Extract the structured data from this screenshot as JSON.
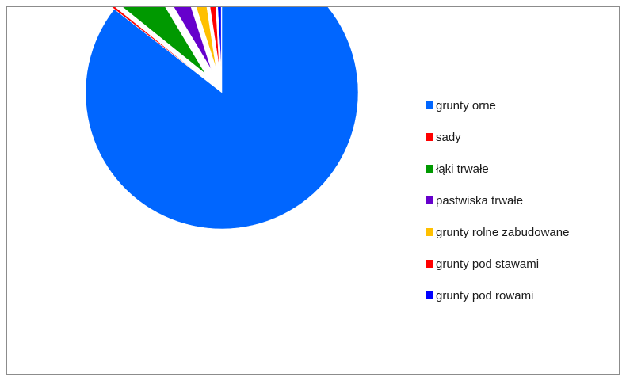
{
  "chart_data": {
    "type": "pie",
    "exploded": true,
    "legend_position": "right",
    "slices": [
      {
        "label": "grunty orne",
        "value": 85.5,
        "color": "#0066ff"
      },
      {
        "label": "sady",
        "value": 0.3,
        "color": "#ff0000"
      },
      {
        "label": "łąki trwałe",
        "value": 5.6,
        "color": "#009900"
      },
      {
        "label": "pastwiska trwałe",
        "value": 3.6,
        "color": "#6600cc"
      },
      {
        "label": "grunty rolne zabudowane",
        "value": 2.6,
        "color": "#ffc000"
      },
      {
        "label": "grunty pod stawami",
        "value": 1.5,
        "color": "#ff0000"
      },
      {
        "label": "grunty pod rowami",
        "value": 0.9,
        "color": "#0000ff"
      }
    ]
  }
}
